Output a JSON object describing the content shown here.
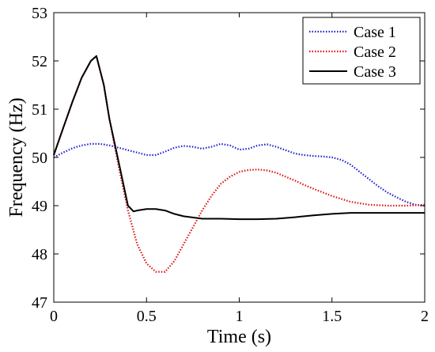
{
  "chart_data": {
    "type": "line",
    "xlabel": "Time (s)",
    "ylabel": "Frequency (Hz)",
    "xlim": [
      0,
      2
    ],
    "ylim": [
      47,
      53
    ],
    "xticks": [
      "0",
      "0.5",
      "1",
      "1.5",
      "2"
    ],
    "yticks": [
      "47",
      "48",
      "49",
      "50",
      "51",
      "52",
      "53"
    ],
    "grid": false,
    "legend_position": "top-right",
    "series": [
      {
        "name": "Case 1",
        "color": "#1f1fd0",
        "style": "dotted",
        "x": [
          0,
          0.05,
          0.1,
          0.15,
          0.2,
          0.25,
          0.3,
          0.35,
          0.4,
          0.45,
          0.5,
          0.55,
          0.6,
          0.65,
          0.7,
          0.75,
          0.8,
          0.85,
          0.9,
          0.95,
          1.0,
          1.05,
          1.1,
          1.15,
          1.2,
          1.25,
          1.3,
          1.35,
          1.4,
          1.45,
          1.5,
          1.55,
          1.6,
          1.65,
          1.7,
          1.75,
          1.8,
          1.85,
          1.9,
          1.95,
          2.0
        ],
        "values": [
          50.0,
          50.1,
          50.19,
          50.25,
          50.28,
          50.28,
          50.25,
          50.2,
          50.15,
          50.1,
          50.05,
          50.05,
          50.12,
          50.2,
          50.24,
          50.22,
          50.18,
          50.22,
          50.28,
          50.25,
          50.16,
          50.18,
          50.25,
          50.27,
          50.22,
          50.15,
          50.08,
          50.05,
          50.03,
          50.02,
          50.0,
          49.95,
          49.85,
          49.7,
          49.55,
          49.4,
          49.27,
          49.17,
          49.08,
          49.02,
          49.0
        ]
      },
      {
        "name": "Case 2",
        "color": "#e01010",
        "style": "dotted",
        "x": [
          0,
          0.05,
          0.1,
          0.15,
          0.2,
          0.23,
          0.27,
          0.3,
          0.35,
          0.4,
          0.45,
          0.5,
          0.55,
          0.6,
          0.65,
          0.7,
          0.75,
          0.8,
          0.85,
          0.9,
          0.95,
          1.0,
          1.05,
          1.1,
          1.15,
          1.2,
          1.25,
          1.3,
          1.35,
          1.4,
          1.5,
          1.6,
          1.7,
          1.8,
          1.9,
          2.0
        ],
        "values": [
          50.05,
          50.6,
          51.15,
          51.65,
          52.0,
          52.1,
          51.5,
          50.8,
          49.8,
          48.9,
          48.2,
          47.8,
          47.63,
          47.63,
          47.85,
          48.2,
          48.55,
          48.9,
          49.2,
          49.45,
          49.6,
          49.7,
          49.74,
          49.75,
          49.73,
          49.68,
          49.6,
          49.52,
          49.43,
          49.35,
          49.2,
          49.08,
          49.02,
          49.0,
          49.0,
          49.02
        ]
      },
      {
        "name": "Case 3",
        "color": "#000000",
        "style": "solid",
        "x": [
          0,
          0.05,
          0.1,
          0.15,
          0.2,
          0.23,
          0.27,
          0.3,
          0.35,
          0.4,
          0.43,
          0.45,
          0.5,
          0.55,
          0.6,
          0.65,
          0.7,
          0.8,
          0.9,
          1.0,
          1.1,
          1.2,
          1.3,
          1.4,
          1.5,
          1.6,
          1.7,
          1.8,
          1.9,
          2.0
        ],
        "values": [
          50.05,
          50.6,
          51.15,
          51.65,
          52.0,
          52.1,
          51.5,
          50.8,
          49.9,
          49.0,
          48.88,
          48.9,
          48.93,
          48.93,
          48.9,
          48.83,
          48.78,
          48.73,
          48.73,
          48.72,
          48.72,
          48.73,
          48.76,
          48.8,
          48.83,
          48.85,
          48.85,
          48.85,
          48.85,
          48.85
        ]
      }
    ]
  }
}
